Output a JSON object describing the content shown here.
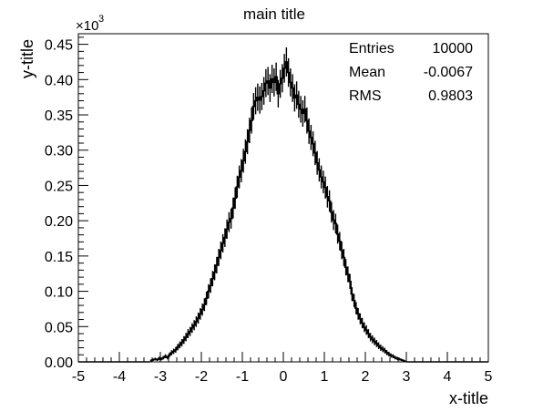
{
  "chart_data": {
    "type": "histogram",
    "title": "main title",
    "xlabel": "x-title",
    "ylabel": "y-title",
    "y_exponent_label": "×10",
    "y_exponent": "3",
    "xlim": [
      -5,
      5
    ],
    "ylim": [
      0,
      0.465
    ],
    "x_ticks": [
      -5,
      -4,
      -3,
      -2,
      -1,
      0,
      1,
      2,
      3,
      4,
      5
    ],
    "x_tick_labels": [
      "-5",
      "-4",
      "-3",
      "-2",
      "-1",
      "0",
      "1",
      "2",
      "3",
      "4",
      "5"
    ],
    "y_ticks": [
      0,
      0.05,
      0.1,
      0.15,
      0.2,
      0.25,
      0.3,
      0.35,
      0.4,
      0.45
    ],
    "y_tick_labels": [
      "0.00",
      "0.05",
      "0.10",
      "0.15",
      "0.20",
      "0.25",
      "0.30",
      "0.35",
      "0.40",
      "0.45"
    ],
    "grid": false,
    "legend": "none",
    "stats_box": {
      "position": "top-right",
      "rows": [
        {
          "label": "Entries",
          "value": "10000"
        },
        {
          "label": "Mean",
          "value": "-0.0067"
        },
        {
          "label": "RMS",
          "value": "0.9803"
        }
      ]
    },
    "series": [
      {
        "bin_width": 0.05,
        "x": [
          -3.25,
          -3.2,
          -3.15,
          -3.1,
          -3.05,
          -3.0,
          -2.95,
          -2.9,
          -2.85,
          -2.8,
          -2.75,
          -2.7,
          -2.65,
          -2.6,
          -2.55,
          -2.5,
          -2.45,
          -2.4,
          -2.35,
          -2.3,
          -2.25,
          -2.2,
          -2.15,
          -2.1,
          -2.05,
          -2.0,
          -1.95,
          -1.9,
          -1.85,
          -1.8,
          -1.75,
          -1.7,
          -1.65,
          -1.6,
          -1.55,
          -1.5,
          -1.45,
          -1.4,
          -1.35,
          -1.3,
          -1.25,
          -1.2,
          -1.15,
          -1.1,
          -1.05,
          -1.0,
          -0.95,
          -0.9,
          -0.85,
          -0.8,
          -0.75,
          -0.7,
          -0.65,
          -0.6,
          -0.55,
          -0.5,
          -0.45,
          -0.4,
          -0.35,
          -0.3,
          -0.25,
          -0.2,
          -0.15,
          -0.1,
          -0.05,
          0.0,
          0.05,
          0.1,
          0.15,
          0.2,
          0.25,
          0.3,
          0.35,
          0.4,
          0.45,
          0.5,
          0.55,
          0.6,
          0.65,
          0.7,
          0.75,
          0.8,
          0.85,
          0.9,
          0.95,
          1.0,
          1.05,
          1.1,
          1.15,
          1.2,
          1.25,
          1.3,
          1.35,
          1.4,
          1.45,
          1.5,
          1.55,
          1.6,
          1.65,
          1.7,
          1.75,
          1.8,
          1.85,
          1.9,
          1.95,
          2.0,
          2.05,
          2.1,
          2.15,
          2.2,
          2.25,
          2.3,
          2.35,
          2.4,
          2.45,
          2.5,
          2.55,
          2.6,
          2.65,
          2.7,
          2.75,
          2.8,
          2.85,
          2.9,
          2.95
        ],
        "y": [
          0.002,
          0.003,
          0.004,
          0.003,
          0.005,
          0.004,
          0.006,
          0.008,
          0.006,
          0.01,
          0.013,
          0.015,
          0.017,
          0.021,
          0.024,
          0.027,
          0.031,
          0.035,
          0.04,
          0.043,
          0.048,
          0.052,
          0.057,
          0.062,
          0.068,
          0.074,
          0.081,
          0.09,
          0.1,
          0.108,
          0.118,
          0.127,
          0.137,
          0.148,
          0.158,
          0.168,
          0.176,
          0.188,
          0.198,
          0.203,
          0.218,
          0.232,
          0.248,
          0.262,
          0.271,
          0.285,
          0.298,
          0.312,
          0.328,
          0.342,
          0.362,
          0.37,
          0.375,
          0.371,
          0.376,
          0.384,
          0.395,
          0.398,
          0.388,
          0.401,
          0.396,
          0.404,
          0.38,
          0.394,
          0.402,
          0.416,
          0.425,
          0.41,
          0.396,
          0.388,
          0.374,
          0.378,
          0.365,
          0.358,
          0.352,
          0.358,
          0.342,
          0.327,
          0.318,
          0.309,
          0.296,
          0.282,
          0.272,
          0.262,
          0.255,
          0.247,
          0.234,
          0.228,
          0.212,
          0.201,
          0.196,
          0.181,
          0.171,
          0.158,
          0.148,
          0.134,
          0.124,
          0.114,
          0.096,
          0.087,
          0.076,
          0.068,
          0.061,
          0.055,
          0.049,
          0.045,
          0.04,
          0.035,
          0.032,
          0.029,
          0.026,
          0.023,
          0.02,
          0.018,
          0.016,
          0.013,
          0.011,
          0.009,
          0.008,
          0.006,
          0.005,
          0.004,
          0.003,
          0.002,
          0.001
        ]
      }
    ]
  }
}
